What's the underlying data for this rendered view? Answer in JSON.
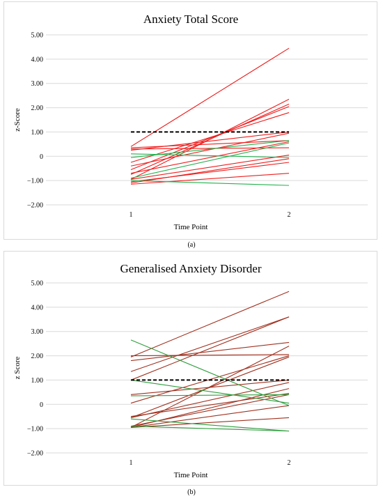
{
  "figures": [
    {
      "caption": "(a)",
      "chart_data": {
        "type": "line",
        "title": "Anxiety Total Score",
        "xlabel": "Time Point",
        "ylabel": "z-Score",
        "categories": [
          "1",
          "2"
        ],
        "ylim": [
          -2,
          5
        ],
        "yticks": [
          "5.00",
          "4.00",
          "3.00",
          "2.00",
          "1.00",
          "0",
          "−1.00",
          "−2.00"
        ],
        "grid": true,
        "colors": {
          "increase": "#ee1c1c",
          "decrease": "#22b14c",
          "threshold": "#000000",
          "grid": "#d9d9d9"
        },
        "threshold": 1.0,
        "series": [
          {
            "values": [
              0.4,
              4.45
            ],
            "color": "#ee1c1c"
          },
          {
            "values": [
              -0.95,
              2.35
            ],
            "color": "#ee1c1c"
          },
          {
            "values": [
              -0.75,
              2.15
            ],
            "color": "#ee1c1c"
          },
          {
            "values": [
              -0.55,
              2.05
            ],
            "color": "#ee1c1c"
          },
          {
            "values": [
              -0.25,
              1.8
            ],
            "color": "#ee1c1c"
          },
          {
            "values": [
              0.25,
              1.0
            ],
            "color": "#ee1c1c"
          },
          {
            "values": [
              -0.4,
              0.95
            ],
            "color": "#ee1c1c"
          },
          {
            "values": [
              0.35,
              0.65
            ],
            "color": "#ee1c1c"
          },
          {
            "values": [
              -0.7,
              0.6
            ],
            "color": "#ee1c1c"
          },
          {
            "values": [
              0.3,
              0.35
            ],
            "color": "#ee1c1c"
          },
          {
            "values": [
              -0.95,
              0.05
            ],
            "color": "#ee1c1c"
          },
          {
            "values": [
              -1.1,
              -0.1
            ],
            "color": "#ee1c1c"
          },
          {
            "values": [
              -1.05,
              -0.25
            ],
            "color": "#ee1c1c"
          },
          {
            "values": [
              -1.15,
              -0.7
            ],
            "color": "#ee1c1c"
          },
          {
            "values": [
              -0.9,
              0.55
            ],
            "color": "#22b14c"
          },
          {
            "values": [
              0.1,
              -0.05
            ],
            "color": "#22b14c"
          },
          {
            "values": [
              -0.05,
              0.65
            ],
            "color": "#22b14c"
          },
          {
            "values": [
              -1.0,
              -1.2
            ],
            "color": "#22b14c"
          }
        ]
      }
    },
    {
      "caption": "(b)",
      "chart_data": {
        "type": "line",
        "title": "Generalised Anxiety Disorder",
        "xlabel": "Time Point",
        "ylabel": "z Score",
        "categories": [
          "1",
          "2"
        ],
        "ylim": [
          -2,
          5
        ],
        "yticks": [
          "5.00",
          "4.00",
          "3.00",
          "2.00",
          "1.00",
          "0",
          "−1.00",
          "−2.00"
        ],
        "grid": true,
        "colors": {
          "increase": "#a0301e",
          "decrease": "#2e9e3c",
          "threshold": "#000000",
          "grid": "#d9d9d9"
        },
        "threshold": 1.0,
        "series": [
          {
            "values": [
              1.95,
              4.65
            ],
            "color": "#a0301e"
          },
          {
            "values": [
              1.35,
              3.6
            ],
            "color": "#a0301e"
          },
          {
            "values": [
              1.0,
              3.6
            ],
            "color": "#a0301e"
          },
          {
            "values": [
              1.8,
              2.55
            ],
            "color": "#a0301e"
          },
          {
            "values": [
              -0.95,
              2.4
            ],
            "color": "#a0301e"
          },
          {
            "values": [
              2.0,
              2.05
            ],
            "color": "#a0301e"
          },
          {
            "values": [
              0.05,
              2.0
            ],
            "color": "#a0301e"
          },
          {
            "values": [
              -0.55,
              1.95
            ],
            "color": "#a0301e"
          },
          {
            "values": [
              0.4,
              1.0
            ],
            "color": "#a0301e"
          },
          {
            "values": [
              -0.55,
              0.9
            ],
            "color": "#a0301e"
          },
          {
            "values": [
              -0.95,
              0.65
            ],
            "color": "#a0301e"
          },
          {
            "values": [
              -0.5,
              0.45
            ],
            "color": "#a0301e"
          },
          {
            "values": [
              -0.9,
              0.4
            ],
            "color": "#a0301e"
          },
          {
            "values": [
              -0.95,
              -0.05
            ],
            "color": "#a0301e"
          },
          {
            "values": [
              -0.95,
              -0.55
            ],
            "color": "#a0301e"
          },
          {
            "values": [
              2.65,
              -0.05
            ],
            "color": "#2e9e3c"
          },
          {
            "values": [
              1.0,
              0.05
            ],
            "color": "#2e9e3c"
          },
          {
            "values": [
              0.35,
              0.4
            ],
            "color": "#2e9e3c"
          },
          {
            "values": [
              -0.6,
              -1.1
            ],
            "color": "#2e9e3c"
          },
          {
            "values": [
              -0.9,
              -1.1
            ],
            "color": "#2e9e3c"
          }
        ]
      }
    }
  ]
}
